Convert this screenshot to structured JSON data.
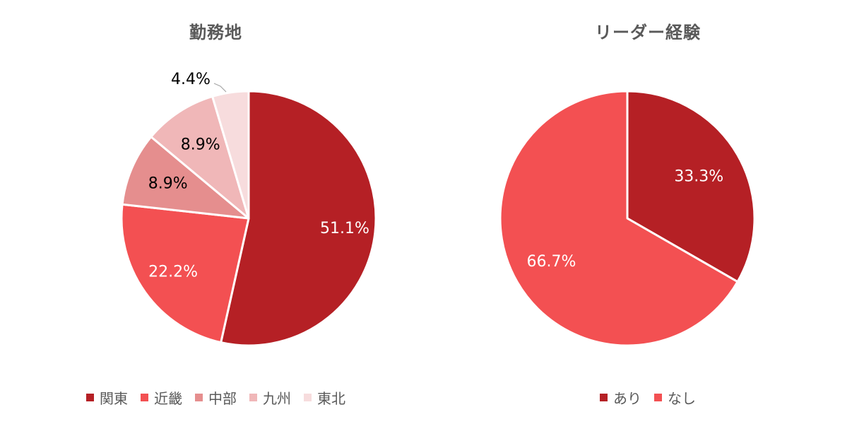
{
  "chart_data": [
    {
      "type": "pie",
      "title": "勤務地",
      "slices": [
        {
          "name": "関東",
          "value": 51.1,
          "label": "51.1%",
          "color": "#b52025"
        },
        {
          "name": "近畿",
          "value": 22.2,
          "label": "22.2%",
          "color": "#f35052"
        },
        {
          "name": "中部",
          "value": 8.9,
          "label": "8.9%",
          "color": "#e58e8e"
        },
        {
          "name": "九州",
          "value": 8.9,
          "label": "8.9%",
          "color": "#f0b7b8"
        },
        {
          "name": "東北",
          "value": 4.4,
          "label": "4.4%",
          "color": "#f7dcdd"
        }
      ],
      "legend_position": "bottom"
    },
    {
      "type": "pie",
      "title": "リーダー経験",
      "slices": [
        {
          "name": "あり",
          "value": 33.3,
          "label": "33.3%",
          "color": "#b52025"
        },
        {
          "name": "なし",
          "value": 66.7,
          "label": "66.7%",
          "color": "#f35052"
        }
      ],
      "legend_position": "bottom"
    }
  ]
}
